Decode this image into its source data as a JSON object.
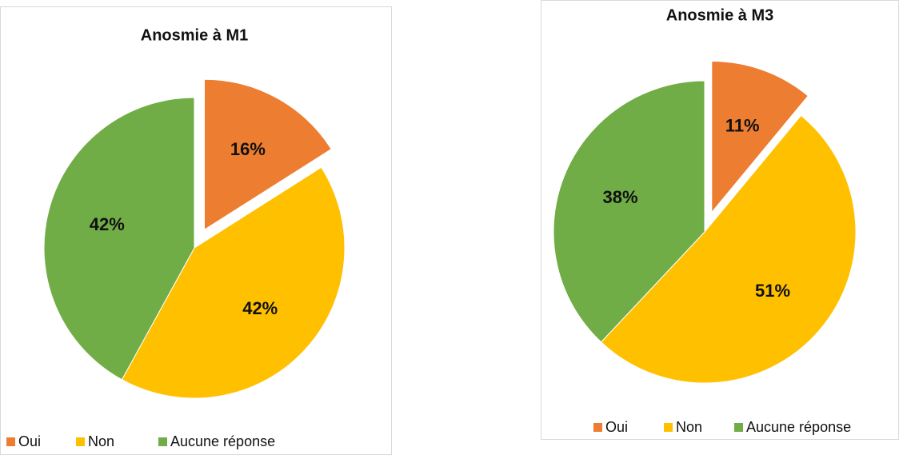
{
  "chart_data": [
    {
      "type": "pie",
      "title": "Anosmie à M1",
      "categories": [
        "Oui",
        "Non",
        "Aucune réponse"
      ],
      "values": [
        16,
        42,
        42
      ],
      "value_labels": [
        "16%",
        "42%",
        "42%"
      ],
      "colors": [
        "#ed7d31",
        "#ffc000",
        "#70ad47"
      ],
      "legend": "bottom"
    },
    {
      "type": "pie",
      "title": "Anosmie à M3",
      "categories": [
        "Oui",
        "Non",
        "Aucune réponse"
      ],
      "values": [
        11,
        51,
        38
      ],
      "value_labels": [
        "11%",
        "51%",
        "38%"
      ],
      "colors": [
        "#ed7d31",
        "#ffc000",
        "#70ad47"
      ],
      "legend": "bottom"
    }
  ]
}
